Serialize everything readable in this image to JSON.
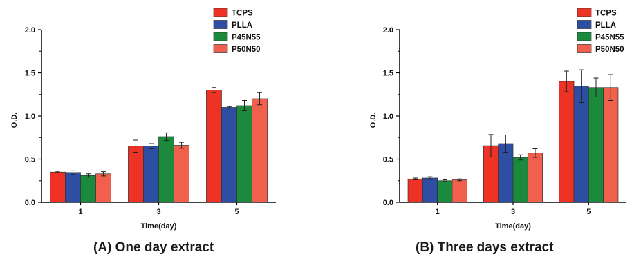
{
  "colors": {
    "TCPS": "#ee3226",
    "PLLA": "#2d4ea3",
    "P45N55": "#1b8a3c",
    "P50N50": "#f0604d"
  },
  "chart_data": [
    {
      "type": "bar",
      "title": "(A) One day extract",
      "xlabel": "Time(day)",
      "ylabel": "O.D.",
      "categories": [
        "1",
        "3",
        "5"
      ],
      "ylim": [
        0,
        2.0
      ],
      "yticks": [
        "0.0",
        "0.5",
        "1.0",
        "1.5",
        "2.0"
      ],
      "legend_position": "top-right",
      "series": [
        {
          "name": "TCPS",
          "values": [
            0.35,
            0.65,
            1.3
          ],
          "errors": [
            0.01,
            0.07,
            0.03
          ]
        },
        {
          "name": "PLLA",
          "values": [
            0.345,
            0.65,
            1.1
          ],
          "errors": [
            0.02,
            0.03,
            0.01
          ]
        },
        {
          "name": "P45N55",
          "values": [
            0.31,
            0.76,
            1.12
          ],
          "errors": [
            0.02,
            0.045,
            0.06
          ]
        },
        {
          "name": "P50N50",
          "values": [
            0.33,
            0.66,
            1.2
          ],
          "errors": [
            0.025,
            0.035,
            0.07
          ]
        }
      ]
    },
    {
      "type": "bar",
      "title": "(B) Three days extract",
      "xlabel": "Time(day)",
      "ylabel": "O.D.",
      "categories": [
        "1",
        "3",
        "5"
      ],
      "ylim": [
        0,
        2.0
      ],
      "yticks": [
        "0.0",
        "0.5",
        "1.0",
        "1.5",
        "2.0"
      ],
      "legend_position": "top-right",
      "series": [
        {
          "name": "TCPS",
          "values": [
            0.27,
            0.655,
            1.4
          ],
          "errors": [
            0.01,
            0.13,
            0.12
          ]
        },
        {
          "name": "PLLA",
          "values": [
            0.28,
            0.68,
            1.345
          ],
          "errors": [
            0.015,
            0.1,
            0.19
          ]
        },
        {
          "name": "P45N55",
          "values": [
            0.25,
            0.52,
            1.33
          ],
          "errors": [
            0.01,
            0.03,
            0.11
          ]
        },
        {
          "name": "P50N50",
          "values": [
            0.26,
            0.57,
            1.33
          ],
          "errors": [
            0.01,
            0.05,
            0.15
          ]
        }
      ]
    }
  ]
}
